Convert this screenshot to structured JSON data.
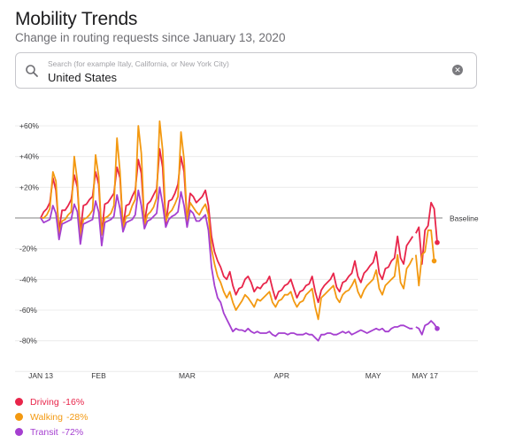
{
  "header": {
    "title": "Mobility Trends",
    "subtitle": "Change in routing requests since January 13, 2020"
  },
  "search": {
    "placeholder": "Search (for example Italy, California, or New York City)",
    "value": "United States",
    "clear_icon": "close-circle-icon",
    "search_icon": "search-icon"
  },
  "chart_data": {
    "type": "line",
    "title": "Mobility Trends",
    "ylim": [
      -100,
      75
    ],
    "ytick_values": [
      60,
      40,
      20,
      -20,
      -40,
      -60,
      -80
    ],
    "ytick_labels": [
      "+60%",
      "+40%",
      "+20%",
      "-20%",
      "-40%",
      "-60%",
      "-80%"
    ],
    "baseline_label": "Baseline",
    "xtick_labels": [
      "JAN 13",
      "FEB",
      "MAR",
      "APR",
      "MAY",
      "MAY 17"
    ],
    "xtick_days": [
      0,
      19,
      48,
      79,
      109,
      126
    ],
    "series": [
      {
        "name": "Driving",
        "label": "Driving",
        "color": "#e8254a",
        "end_value": "-16%",
        "gap_after_day": 122,
        "values": [
          0,
          4,
          6,
          10,
          26,
          18,
          -8,
          5,
          5,
          8,
          12,
          28,
          20,
          -9,
          8,
          9,
          12,
          14,
          30,
          22,
          -10,
          9,
          10,
          13,
          16,
          33,
          26,
          -6,
          8,
          9,
          14,
          18,
          38,
          29,
          -3,
          9,
          11,
          15,
          19,
          45,
          33,
          -4,
          11,
          12,
          16,
          22,
          40,
          30,
          -2,
          16,
          14,
          10,
          12,
          14,
          18,
          8,
          -12,
          -22,
          -28,
          -32,
          -38,
          -40,
          -35,
          -44,
          -50,
          -46,
          -45,
          -40,
          -38,
          -42,
          -48,
          -45,
          -46,
          -43,
          -42,
          -38,
          -46,
          -53,
          -48,
          -47,
          -44,
          -43,
          -40,
          -46,
          -52,
          -48,
          -47,
          -44,
          -43,
          -38,
          -48,
          -55,
          -47,
          -44,
          -42,
          -40,
          -36,
          -45,
          -48,
          -42,
          -41,
          -38,
          -36,
          -28,
          -38,
          -42,
          -36,
          -34,
          -31,
          -29,
          -22,
          -36,
          -40,
          -33,
          -32,
          -28,
          -26,
          -12,
          -26,
          -30,
          -18,
          -15,
          -12,
          -10,
          -6,
          -30,
          -8,
          -5,
          10,
          6,
          -16
        ]
      },
      {
        "name": "Walking",
        "label": "Walking",
        "color": "#f39911",
        "end_value": "-28%",
        "gap_after_day": 122,
        "values": [
          0,
          0,
          2,
          6,
          30,
          24,
          -11,
          -2,
          -1,
          2,
          4,
          40,
          24,
          -12,
          -1,
          0,
          2,
          5,
          41,
          27,
          -11,
          0,
          1,
          3,
          8,
          52,
          30,
          -7,
          1,
          2,
          8,
          12,
          60,
          42,
          -5,
          2,
          4,
          7,
          13,
          63,
          44,
          -2,
          3,
          5,
          9,
          14,
          56,
          38,
          -2,
          10,
          7,
          4,
          2,
          6,
          9,
          2,
          -20,
          -30,
          -38,
          -42,
          -48,
          -52,
          -48,
          -55,
          -60,
          -57,
          -54,
          -50,
          -52,
          -55,
          -58,
          -53,
          -54,
          -52,
          -50,
          -48,
          -55,
          -58,
          -54,
          -53,
          -50,
          -50,
          -48,
          -54,
          -58,
          -55,
          -54,
          -50,
          -48,
          -46,
          -58,
          -66,
          -52,
          -50,
          -48,
          -46,
          -44,
          -52,
          -55,
          -50,
          -48,
          -47,
          -44,
          -40,
          -48,
          -52,
          -47,
          -44,
          -42,
          -40,
          -34,
          -46,
          -50,
          -44,
          -42,
          -40,
          -38,
          -24,
          -42,
          -46,
          -33,
          -30,
          -26,
          -24,
          -44,
          -24,
          -22,
          -8,
          -8,
          -28
        ]
      },
      {
        "name": "Transit",
        "label": "Transit",
        "color": "#a53fd0",
        "end_value": "-72%",
        "gap_after_day": 122,
        "values": [
          0,
          -3,
          -2,
          -1,
          8,
          3,
          -14,
          -4,
          -3,
          -2,
          -1,
          9,
          4,
          -17,
          -4,
          -3,
          -2,
          -1,
          11,
          4,
          -18,
          -3,
          -2,
          -1,
          1,
          15,
          6,
          -9,
          -3,
          -2,
          -1,
          2,
          18,
          8,
          -7,
          -2,
          -1,
          1,
          3,
          20,
          9,
          -6,
          -1,
          1,
          2,
          4,
          17,
          8,
          -6,
          5,
          3,
          -2,
          -2,
          0,
          2,
          -8,
          -32,
          -44,
          -52,
          -55,
          -62,
          -66,
          -70,
          -74,
          -72,
          -73,
          -73,
          -74,
          -72,
          -74,
          -75,
          -74,
          -75,
          -75,
          -75,
          -74,
          -76,
          -77,
          -75,
          -75,
          -75,
          -76,
          -75,
          -75,
          -76,
          -76,
          -76,
          -75,
          -76,
          -76,
          -78,
          -80,
          -76,
          -76,
          -75,
          -75,
          -76,
          -76,
          -75,
          -74,
          -75,
          -74,
          -76,
          -75,
          -74,
          -73,
          -74,
          -75,
          -74,
          -73,
          -72,
          -73,
          -72,
          -74,
          -74,
          -72,
          -71,
          -71,
          -70,
          -70,
          -71,
          -72,
          -72,
          -71,
          -72,
          -76,
          -70,
          -69,
          -67,
          -69,
          -72
        ]
      }
    ]
  }
}
